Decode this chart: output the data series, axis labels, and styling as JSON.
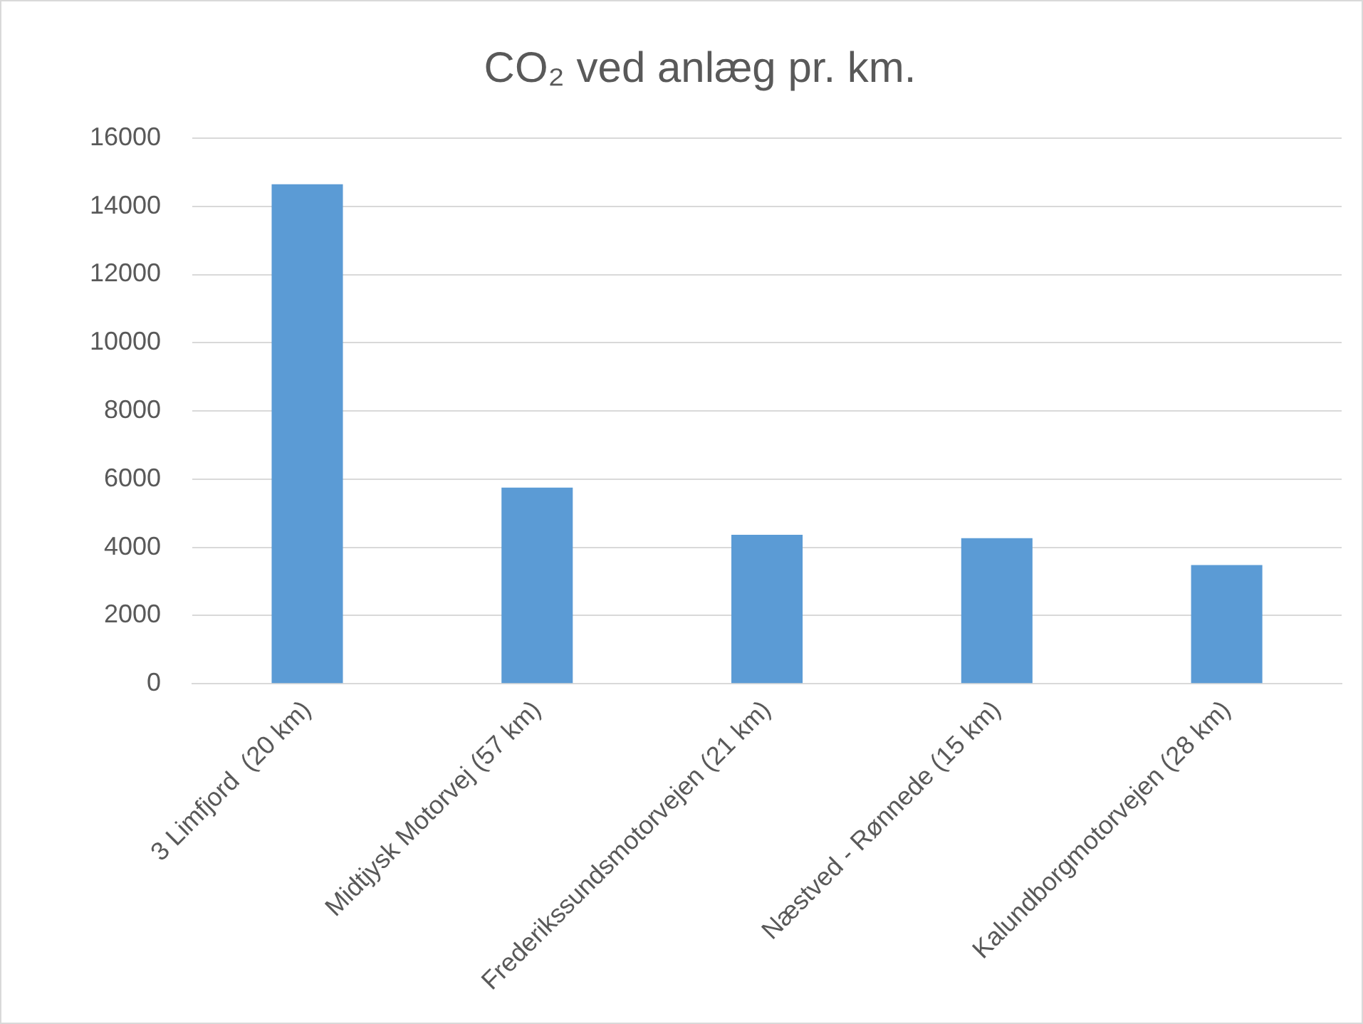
{
  "chart_data": {
    "type": "bar",
    "title": "CO₂ ved anlæg pr. km.",
    "categories": [
      "3 Limfjord  (20 km)",
      "Midtjysk Motorvej (57 km)",
      "Frederikssundsmotorvejen (21 km)",
      "Næstved - Rønnede (15 km)",
      "Kalundborgmotorvejen (28 km)"
    ],
    "values": [
      14650,
      5750,
      4370,
      4270,
      3480
    ],
    "color": "#5b9bd5",
    "ylim": [
      0,
      16000
    ],
    "yticks": [
      0,
      2000,
      4000,
      6000,
      8000,
      10000,
      12000,
      14000,
      16000
    ],
    "grid": "y",
    "legend": false
  }
}
